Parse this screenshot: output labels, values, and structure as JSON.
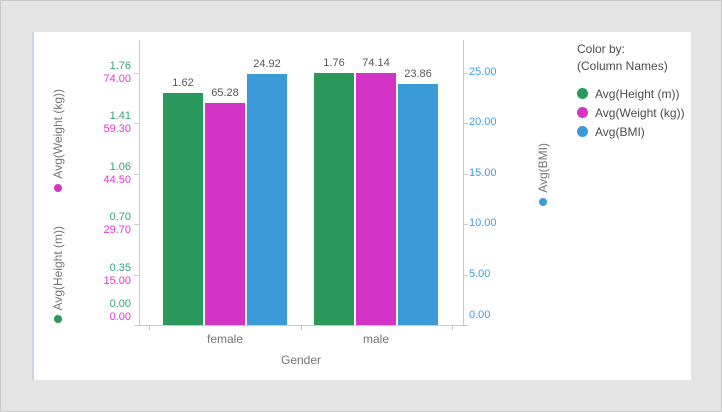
{
  "legend": {
    "title": "Color by:",
    "subtitle": "(Column Names)",
    "items": [
      {
        "label": "Avg(Height (m))",
        "color": "#29995c"
      },
      {
        "label": "Avg(Weight (kg))",
        "color": "#d334c5"
      },
      {
        "label": "Avg(BMI)",
        "color": "#3b9bd8"
      }
    ]
  },
  "axes": {
    "left_titles": [
      {
        "label": "Avg(Weight (kg))",
        "dot_color": "#d334c5"
      },
      {
        "label": "Avg(Height (m))",
        "dot_color": "#29995c"
      }
    ],
    "right_title": {
      "label": "Avg(BMI)",
      "dot_color": "#3b9bd8"
    }
  },
  "chart_data": {
    "type": "bar",
    "title": "",
    "xlabel": "Gender",
    "categories": [
      "female",
      "male"
    ],
    "series": [
      {
        "name": "Avg(Height (m))",
        "color": "#29995c",
        "tick_color": "#2fa577",
        "values": [
          1.62,
          1.76
        ],
        "value_labels": [
          "1.62",
          "1.76"
        ],
        "axis": "left",
        "axis_max": 1.76,
        "tick_labels": [
          "1.76",
          "1.41",
          "1.06",
          "0.70",
          "0.35",
          "0.00"
        ]
      },
      {
        "name": "Avg(Weight (kg))",
        "color": "#d334c5",
        "tick_color": "#e138d2",
        "values": [
          65.28,
          74.14
        ],
        "value_labels": [
          "65.28",
          "74.14"
        ],
        "axis": "left",
        "axis_max": 74.0,
        "tick_labels": [
          "74.00",
          "59.30",
          "44.50",
          "29.70",
          "15.00",
          "0.00"
        ]
      },
      {
        "name": "Avg(BMI)",
        "color": "#3b9bd8",
        "tick_color": "#3ba0e0",
        "values": [
          24.92,
          23.86
        ],
        "value_labels": [
          "24.92",
          "23.86"
        ],
        "axis": "right",
        "axis_max": 25.0,
        "tick_labels": [
          "25.00",
          "20.00",
          "15.00",
          "10.00",
          "5.00",
          "0.00"
        ]
      }
    ],
    "grid": false,
    "legend_position": "right",
    "ylim_left_height": [
      0,
      1.76
    ],
    "ylim_left_weight": [
      0,
      74.0
    ],
    "ylim_right_bmi": [
      0,
      25.0
    ]
  }
}
